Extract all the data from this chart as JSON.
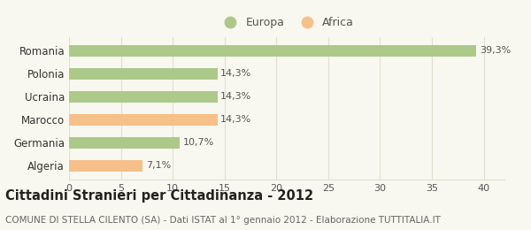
{
  "categories": [
    "Romania",
    "Polonia",
    "Ucraina",
    "Marocco",
    "Germania",
    "Algeria"
  ],
  "values": [
    39.3,
    14.3,
    14.3,
    14.3,
    10.7,
    7.1
  ],
  "labels": [
    "39,3%",
    "14,3%",
    "14,3%",
    "14,3%",
    "10,7%",
    "7,1%"
  ],
  "colors": [
    "#adc98a",
    "#adc98a",
    "#adc98a",
    "#f5c08a",
    "#adc98a",
    "#f5c08a"
  ],
  "legend_europa_color": "#adc98a",
  "legend_africa_color": "#f5c08a",
  "xlim": [
    0,
    42
  ],
  "xticks": [
    0,
    5,
    10,
    15,
    20,
    25,
    30,
    35,
    40
  ],
  "title": "Cittadini Stranieri per Cittadinanza - 2012",
  "subtitle": "COMUNE DI STELLA CILENTO (SA) - Dati ISTAT al 1° gennaio 2012 - Elaborazione TUTTITALIA.IT",
  "title_fontsize": 10.5,
  "subtitle_fontsize": 7.5,
  "bar_height": 0.5,
  "background_color": "#f8f8f0",
  "grid_color": "#e0e0d0",
  "label_fontsize": 8,
  "tick_fontsize": 8,
  "ytick_fontsize": 8.5
}
